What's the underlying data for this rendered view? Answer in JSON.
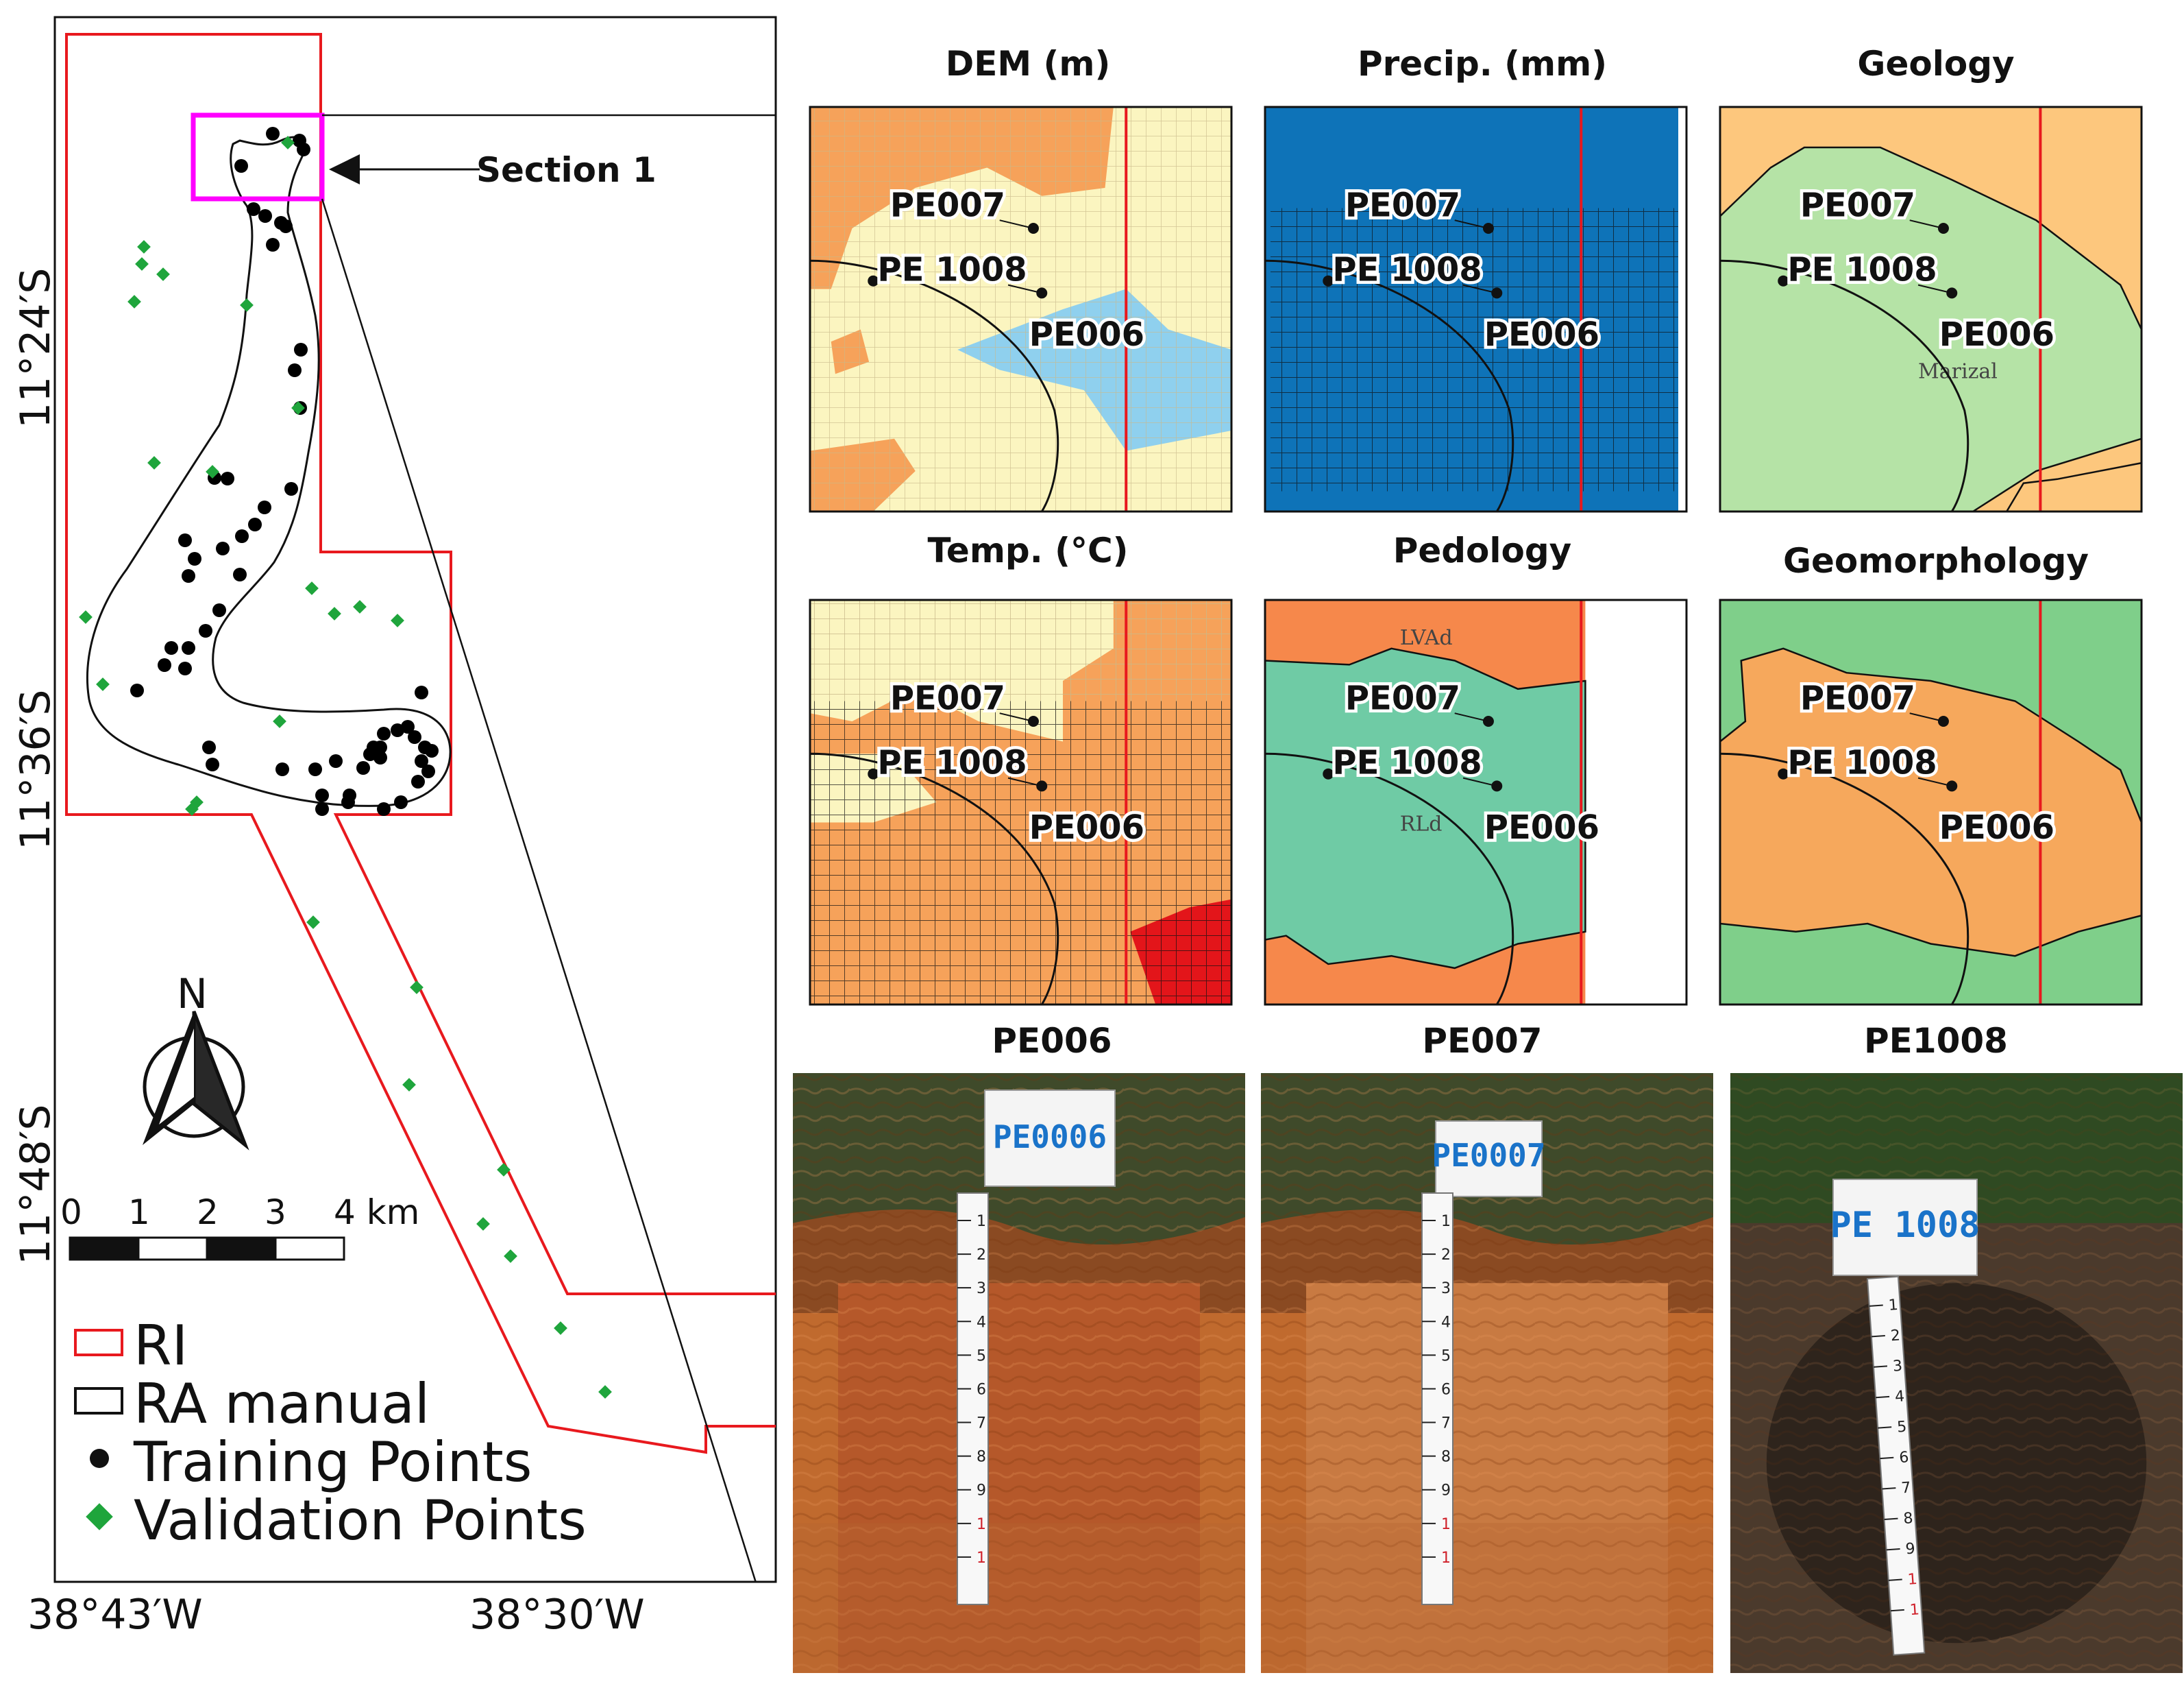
{
  "overview": {
    "lat_labels": [
      "11°24′S",
      "11°36′S",
      "11°48′S"
    ],
    "lon_labels": [
      "38°43′W",
      "38°30′W"
    ],
    "section_label": "Section 1",
    "north_label": "N",
    "scale": {
      "ticks": [
        "0",
        "1",
        "2",
        "3",
        "4 km"
      ]
    },
    "legend": [
      {
        "label": "RI",
        "symbol": "red-rect-outline"
      },
      {
        "label": "RA manual",
        "symbol": "black-rect-outline"
      },
      {
        "label": "Training Points",
        "symbol": "black-dot"
      },
      {
        "label": "Validation Points",
        "symbol": "green-diamond"
      }
    ],
    "colors": {
      "ri": "#e8191e",
      "training": "#000000",
      "validation": "#1fa53c",
      "section_box": "#ff00ff"
    }
  },
  "panels": [
    {
      "title": "DEM (m)",
      "style": "dem"
    },
    {
      "title": "Precip. (mm)",
      "style": "precip"
    },
    {
      "title": "Geology",
      "style": "geology",
      "annotation": "Marizal"
    },
    {
      "title": "Temp. (°C)",
      "style": "temp"
    },
    {
      "title": "Pedology",
      "style": "pedology",
      "annotations": [
        "LVAd",
        "RLd"
      ]
    },
    {
      "title": "Geomorphology",
      "style": "geomorph"
    }
  ],
  "point_labels": {
    "a": "PE007",
    "b": "PE 1008",
    "c": "PE006"
  },
  "photos": [
    {
      "title": "PE006",
      "sign": "PE0006"
    },
    {
      "title": "PE007",
      "sign": "PE0007"
    },
    {
      "title": "PE1008",
      "sign": "PE 1008"
    }
  ],
  "ruler_marks": [
    "1",
    "2",
    "3",
    "4",
    "5",
    "6",
    "7",
    "8",
    "9",
    "1",
    "1"
  ]
}
